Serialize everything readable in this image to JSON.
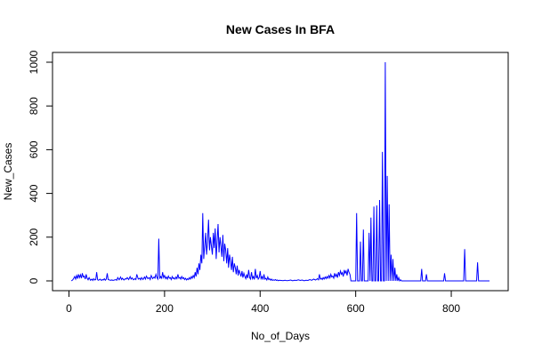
{
  "chart_data": {
    "type": "line",
    "title": "New Cases In BFA",
    "xlabel": "No_of_Days",
    "ylabel": "New_Cases",
    "xlim": [
      0,
      880
    ],
    "ylim": [
      0,
      1000
    ],
    "xticks": [
      0,
      200,
      400,
      600,
      800
    ],
    "yticks": [
      0,
      200,
      400,
      600,
      800,
      1000
    ],
    "grid": false,
    "line_color": "#0000ff",
    "series": [
      {
        "points": [
          [
            5,
            0
          ],
          [
            8,
            5
          ],
          [
            10,
            12
          ],
          [
            12,
            20
          ],
          [
            14,
            8
          ],
          [
            16,
            25
          ],
          [
            18,
            10
          ],
          [
            20,
            30
          ],
          [
            22,
            15
          ],
          [
            24,
            28
          ],
          [
            26,
            12
          ],
          [
            28,
            35
          ],
          [
            30,
            18
          ],
          [
            32,
            22
          ],
          [
            34,
            8
          ],
          [
            36,
            30
          ],
          [
            38,
            12
          ],
          [
            40,
            5
          ],
          [
            42,
            15
          ],
          [
            45,
            3
          ],
          [
            48,
            8
          ],
          [
            50,
            2
          ],
          [
            52,
            10
          ],
          [
            54,
            4
          ],
          [
            56,
            6
          ],
          [
            58,
            40
          ],
          [
            60,
            5
          ],
          [
            62,
            3
          ],
          [
            65,
            8
          ],
          [
            68,
            2
          ],
          [
            70,
            6
          ],
          [
            72,
            4
          ],
          [
            74,
            10
          ],
          [
            76,
            3
          ],
          [
            78,
            8
          ],
          [
            80,
            35
          ],
          [
            82,
            6
          ],
          [
            85,
            4
          ],
          [
            88,
            3
          ],
          [
            90,
            5
          ],
          [
            92,
            2
          ],
          [
            95,
            4
          ],
          [
            98,
            6
          ],
          [
            100,
            3
          ],
          [
            102,
            15
          ],
          [
            105,
            5
          ],
          [
            108,
            18
          ],
          [
            110,
            6
          ],
          [
            112,
            12
          ],
          [
            115,
            4
          ],
          [
            118,
            10
          ],
          [
            120,
            8
          ],
          [
            122,
            15
          ],
          [
            125,
            6
          ],
          [
            128,
            20
          ],
          [
            130,
            8
          ],
          [
            132,
            14
          ],
          [
            135,
            5
          ],
          [
            138,
            10
          ],
          [
            140,
            6
          ],
          [
            142,
            30
          ],
          [
            145,
            8
          ],
          [
            148,
            12
          ],
          [
            150,
            5
          ],
          [
            152,
            15
          ],
          [
            155,
            6
          ],
          [
            158,
            18
          ],
          [
            160,
            8
          ],
          [
            162,
            22
          ],
          [
            165,
            10
          ],
          [
            168,
            15
          ],
          [
            170,
            6
          ],
          [
            172,
            25
          ],
          [
            175,
            10
          ],
          [
            178,
            18
          ],
          [
            180,
            12
          ],
          [
            182,
            30
          ],
          [
            184,
            15
          ],
          [
            186,
            8
          ],
          [
            188,
            193
          ],
          [
            190,
            10
          ],
          [
            192,
            20
          ],
          [
            194,
            12
          ],
          [
            196,
            40
          ],
          [
            198,
            15
          ],
          [
            200,
            25
          ],
          [
            202,
            10
          ],
          [
            204,
            18
          ],
          [
            206,
            8
          ],
          [
            208,
            22
          ],
          [
            210,
            12
          ],
          [
            212,
            15
          ],
          [
            214,
            6
          ],
          [
            216,
            20
          ],
          [
            218,
            10
          ],
          [
            220,
            14
          ],
          [
            222,
            8
          ],
          [
            224,
            18
          ],
          [
            226,
            10
          ],
          [
            228,
            30
          ],
          [
            230,
            12
          ],
          [
            232,
            16
          ],
          [
            234,
            8
          ],
          [
            236,
            20
          ],
          [
            238,
            10
          ],
          [
            240,
            15
          ],
          [
            242,
            6
          ],
          [
            244,
            12
          ],
          [
            246,
            4
          ],
          [
            248,
            10
          ],
          [
            250,
            6
          ],
          [
            252,
            15
          ],
          [
            254,
            8
          ],
          [
            256,
            20
          ],
          [
            258,
            12
          ],
          [
            260,
            25
          ],
          [
            262,
            15
          ],
          [
            264,
            40
          ],
          [
            266,
            20
          ],
          [
            268,
            60
          ],
          [
            270,
            30
          ],
          [
            272,
            80
          ],
          [
            274,
            50
          ],
          [
            276,
            120
          ],
          [
            278,
            80
          ],
          [
            280,
            310
          ],
          [
            282,
            100
          ],
          [
            284,
            160
          ],
          [
            286,
            220
          ],
          [
            288,
            120
          ],
          [
            290,
            180
          ],
          [
            292,
            280
          ],
          [
            294,
            140
          ],
          [
            296,
            200
          ],
          [
            298,
            160
          ],
          [
            300,
            120
          ],
          [
            302,
            220
          ],
          [
            304,
            150
          ],
          [
            306,
            240
          ],
          [
            308,
            100
          ],
          [
            310,
            180
          ],
          [
            312,
            260
          ],
          [
            314,
            130
          ],
          [
            316,
            200
          ],
          [
            318,
            160
          ],
          [
            320,
            110
          ],
          [
            322,
            210
          ],
          [
            324,
            90
          ],
          [
            326,
            170
          ],
          [
            328,
            140
          ],
          [
            330,
            80
          ],
          [
            332,
            150
          ],
          [
            334,
            60
          ],
          [
            336,
            120
          ],
          [
            338,
            90
          ],
          [
            340,
            50
          ],
          [
            342,
            110
          ],
          [
            344,
            40
          ],
          [
            346,
            80
          ],
          [
            348,
            60
          ],
          [
            350,
            30
          ],
          [
            352,
            70
          ],
          [
            354,
            25
          ],
          [
            356,
            50
          ],
          [
            358,
            35
          ],
          [
            360,
            20
          ],
          [
            362,
            45
          ],
          [
            364,
            15
          ],
          [
            366,
            35
          ],
          [
            368,
            20
          ],
          [
            370,
            10
          ],
          [
            372,
            30
          ],
          [
            374,
            12
          ],
          [
            376,
            50
          ],
          [
            378,
            15
          ],
          [
            380,
            8
          ],
          [
            382,
            40
          ],
          [
            384,
            10
          ],
          [
            386,
            20
          ],
          [
            388,
            6
          ],
          [
            390,
            55
          ],
          [
            392,
            12
          ],
          [
            394,
            25
          ],
          [
            396,
            8
          ],
          [
            398,
            15
          ],
          [
            400,
            45
          ],
          [
            402,
            10
          ],
          [
            404,
            20
          ],
          [
            406,
            6
          ],
          [
            408,
            30
          ],
          [
            410,
            8
          ],
          [
            412,
            12
          ],
          [
            414,
            4
          ],
          [
            416,
            18
          ],
          [
            418,
            6
          ],
          [
            420,
            10
          ],
          [
            422,
            3
          ],
          [
            424,
            8
          ],
          [
            426,
            2
          ],
          [
            428,
            5
          ],
          [
            430,
            3
          ],
          [
            432,
            6
          ],
          [
            434,
            2
          ],
          [
            436,
            4
          ],
          [
            438,
            1
          ],
          [
            440,
            3
          ],
          [
            444,
            2
          ],
          [
            448,
            1
          ],
          [
            452,
            3
          ],
          [
            456,
            1
          ],
          [
            460,
            2
          ],
          [
            464,
            4
          ],
          [
            468,
            1
          ],
          [
            472,
            3
          ],
          [
            476,
            2
          ],
          [
            480,
            5
          ],
          [
            484,
            2
          ],
          [
            488,
            4
          ],
          [
            492,
            1
          ],
          [
            496,
            3
          ],
          [
            500,
            2
          ],
          [
            504,
            6
          ],
          [
            508,
            3
          ],
          [
            512,
            8
          ],
          [
            516,
            4
          ],
          [
            520,
            10
          ],
          [
            522,
            5
          ],
          [
            524,
            30
          ],
          [
            526,
            8
          ],
          [
            528,
            12
          ],
          [
            530,
            6
          ],
          [
            532,
            15
          ],
          [
            534,
            8
          ],
          [
            536,
            18
          ],
          [
            538,
            10
          ],
          [
            540,
            20
          ],
          [
            542,
            12
          ],
          [
            544,
            25
          ],
          [
            546,
            14
          ],
          [
            548,
            30
          ],
          [
            550,
            18
          ],
          [
            552,
            22
          ],
          [
            554,
            12
          ],
          [
            556,
            35
          ],
          [
            558,
            20
          ],
          [
            560,
            30
          ],
          [
            562,
            15
          ],
          [
            564,
            40
          ],
          [
            566,
            25
          ],
          [
            568,
            45
          ],
          [
            570,
            30
          ],
          [
            572,
            38
          ],
          [
            574,
            20
          ],
          [
            576,
            50
          ],
          [
            578,
            35
          ],
          [
            580,
            45
          ],
          [
            582,
            25
          ],
          [
            584,
            55
          ],
          [
            586,
            40
          ],
          [
            588,
            30
          ],
          [
            590,
            0
          ],
          [
            598,
            0
          ],
          [
            600,
            0
          ],
          [
            602,
            310
          ],
          [
            604,
            0
          ],
          [
            608,
            0
          ],
          [
            610,
            180
          ],
          [
            612,
            0
          ],
          [
            614,
            0
          ],
          [
            616,
            235
          ],
          [
            618,
            0
          ],
          [
            620,
            0
          ],
          [
            622,
            0
          ],
          [
            624,
            0
          ],
          [
            626,
            0
          ],
          [
            628,
            220
          ],
          [
            630,
            0
          ],
          [
            632,
            290
          ],
          [
            634,
            0
          ],
          [
            636,
            0
          ],
          [
            638,
            340
          ],
          [
            640,
            0
          ],
          [
            642,
            0
          ],
          [
            644,
            345
          ],
          [
            646,
            0
          ],
          [
            648,
            0
          ],
          [
            650,
            370
          ],
          [
            652,
            0
          ],
          [
            654,
            0
          ],
          [
            656,
            590
          ],
          [
            658,
            0
          ],
          [
            660,
            0
          ],
          [
            662,
            1000
          ],
          [
            664,
            0
          ],
          [
            666,
            480
          ],
          [
            668,
            0
          ],
          [
            670,
            350
          ],
          [
            672,
            0
          ],
          [
            674,
            120
          ],
          [
            676,
            0
          ],
          [
            678,
            100
          ],
          [
            680,
            0
          ],
          [
            682,
            60
          ],
          [
            684,
            0
          ],
          [
            686,
            30
          ],
          [
            688,
            0
          ],
          [
            690,
            15
          ],
          [
            692,
            0
          ],
          [
            694,
            5
          ],
          [
            696,
            0
          ],
          [
            700,
            0
          ],
          [
            710,
            0
          ],
          [
            720,
            0
          ],
          [
            730,
            0
          ],
          [
            736,
            0
          ],
          [
            738,
            55
          ],
          [
            740,
            0
          ],
          [
            746,
            0
          ],
          [
            748,
            30
          ],
          [
            750,
            0
          ],
          [
            760,
            0
          ],
          [
            770,
            0
          ],
          [
            780,
            0
          ],
          [
            784,
            0
          ],
          [
            786,
            35
          ],
          [
            788,
            0
          ],
          [
            800,
            0
          ],
          [
            815,
            0
          ],
          [
            826,
            0
          ],
          [
            828,
            145
          ],
          [
            830,
            0
          ],
          [
            840,
            0
          ],
          [
            850,
            0
          ],
          [
            853,
            0
          ],
          [
            855,
            85
          ],
          [
            857,
            0
          ],
          [
            865,
            0
          ],
          [
            880,
            0
          ]
        ]
      }
    ]
  }
}
